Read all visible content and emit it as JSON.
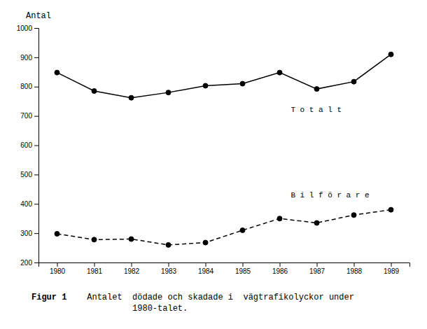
{
  "chart_data": {
    "type": "line",
    "ylabel": "Antal",
    "x": [
      1980,
      1981,
      1982,
      1983,
      1984,
      1985,
      1986,
      1987,
      1988,
      1989
    ],
    "xlim": [
      1979.5,
      1989.5
    ],
    "xticks": [
      1980,
      1981,
      1982,
      1983,
      1984,
      1985,
      1986,
      1987,
      1988,
      1989
    ],
    "ylim": [
      200,
      1000
    ],
    "yticks": [
      200,
      300,
      400,
      500,
      600,
      700,
      800,
      900,
      1000
    ],
    "grid": false,
    "series": [
      {
        "color": "#000000",
        "line_style": "solid",
        "marker": "circle",
        "values": [
          848,
          785,
          762,
          780,
          803,
          810,
          848,
          792,
          817,
          910
        ]
      },
      {
        "color": "#000000",
        "line_style": "dashed",
        "marker": "circle",
        "values": [
          298,
          278,
          280,
          260,
          268,
          310,
          350,
          335,
          362,
          380
        ]
      }
    ],
    "annotations": [
      {
        "text": "T o t a l t",
        "x": 1986.3,
        "y": 720
      },
      {
        "text": "B i l f ö r a r e",
        "x": 1986.3,
        "y": 430
      }
    ],
    "caption_label": "Figur 1",
    "caption": "    Antalet  dödade och skadade i  vägtrafikolyckor under\n             1980-talet."
  }
}
